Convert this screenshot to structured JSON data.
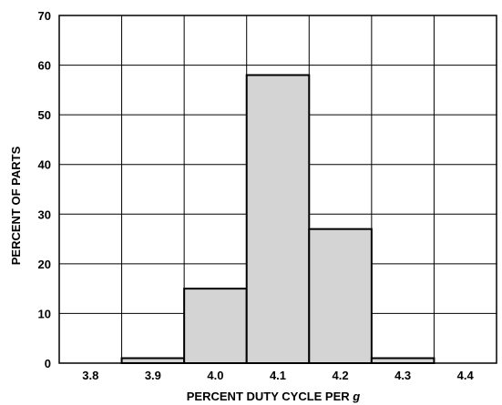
{
  "chart_data": {
    "type": "bar",
    "title": "",
    "xlabel_main": "PERCENT DUTY CYCLE PER ",
    "xlabel_symbol": "g",
    "ylabel": "PERCENT OF PARTS",
    "x_ticks": [
      "3.8",
      "3.9",
      "4.0",
      "4.1",
      "4.2",
      "4.3",
      "4.4"
    ],
    "y_ticks": [
      "0",
      "10",
      "20",
      "30",
      "40",
      "50",
      "60",
      "70"
    ],
    "ylim": [
      0,
      70
    ],
    "grid": true,
    "categories": [
      "3.9",
      "4.0",
      "4.1",
      "4.2",
      "4.3"
    ],
    "values": [
      1,
      15,
      58,
      27,
      1
    ],
    "bar_color": "#d4d4d4"
  }
}
